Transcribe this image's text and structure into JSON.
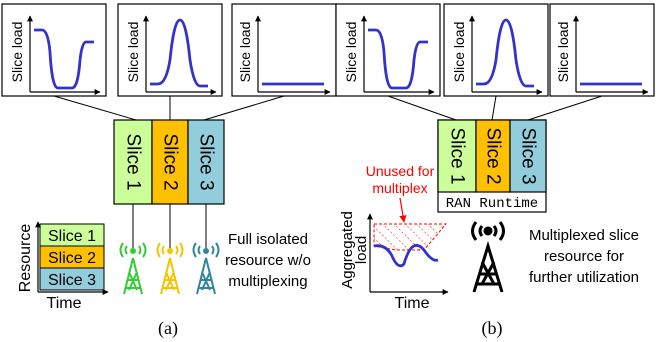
{
  "panels": {
    "a": {
      "caption": "(a)",
      "load_label": "Slice load",
      "slices": [
        "Slice 1",
        "Slice 2",
        "Slice 3"
      ],
      "legend_slices": [
        "Slice 1",
        "Slice 2",
        "Slice 3"
      ],
      "resource_label": "Resource",
      "time_label": "Time",
      "description": [
        "Full isolated",
        "resource w/o",
        "multiplexing"
      ]
    },
    "b": {
      "caption": "(b)",
      "load_label": "Slice load",
      "slices": [
        "Slice 1",
        "Slice 2",
        "Slice 3"
      ],
      "runtime_label": "RAN Runtime",
      "unused_label": [
        "Unused for",
        "multiplex"
      ],
      "aggregated_label": [
        "Aggregated",
        "load"
      ],
      "time_label": "Time",
      "description": [
        "Multiplexed slice",
        "resource for",
        "further utilization"
      ]
    }
  },
  "colors": {
    "slice1": "#ccff99",
    "slice2": "#ffc000",
    "slice3": "#92cddc",
    "curve": "#3333cc",
    "unused": "#ff0000",
    "tower1": "#33cc33",
    "tower2": "#f5c400",
    "tower3": "#31859c"
  }
}
